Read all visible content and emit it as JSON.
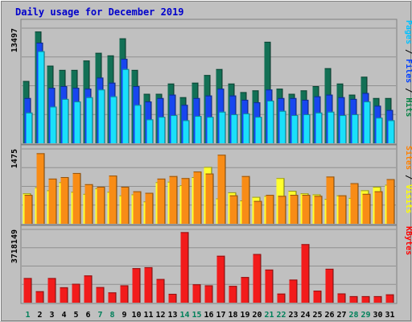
{
  "chart_data": {
    "type": "bar",
    "title": "Daily usage for December 2019",
    "categories": [
      "1",
      "2",
      "3",
      "4",
      "5",
      "6",
      "7",
      "8",
      "9",
      "10",
      "11",
      "12",
      "13",
      "14",
      "15",
      "16",
      "17",
      "18",
      "19",
      "20",
      "21",
      "22",
      "23",
      "24",
      "25",
      "26",
      "27",
      "28",
      "29",
      "30",
      "31"
    ],
    "weekend_days": [
      "1",
      "7",
      "8",
      "14",
      "15",
      "21",
      "22",
      "28",
      "29"
    ],
    "panels": [
      {
        "id": "hits_files_pages",
        "ymax_label": "13497",
        "ymax": 13497,
        "legend": [
          {
            "label": "Pages",
            "color": "#00c0ff"
          },
          {
            "label": "Files",
            "color": "#0040ff"
          },
          {
            "label": "Hits",
            "color": "#008040"
          }
        ],
        "series": [
          {
            "name": "Hits",
            "color": "#127055",
            "values": [
              7300,
              13100,
              9100,
              8600,
              8600,
              9700,
              10600,
              10300,
              12300,
              8600,
              5800,
              5800,
              7000,
              5400,
              7100,
              8000,
              8700,
              7000,
              6000,
              6200,
              11900,
              6400,
              5800,
              6200,
              6700,
              8800,
              7000,
              5700,
              7800,
              5300,
              5300
            ]
          },
          {
            "name": "Files",
            "color": "#1846ef",
            "values": [
              5300,
              11800,
              6500,
              6700,
              6500,
              6400,
              7700,
              7100,
              9900,
              6700,
              4900,
              5300,
              5700,
              4500,
              5300,
              5600,
              6400,
              5600,
              5100,
              4800,
              6300,
              5300,
              5300,
              5100,
              5500,
              5700,
              5400,
              5200,
              5900,
              4400,
              3900
            ]
          },
          {
            "name": "Pages",
            "color": "#1ae0fa",
            "values": [
              3600,
              10800,
              4300,
              5200,
              4900,
              5400,
              6300,
              5500,
              8700,
              4500,
              2800,
              3100,
              3300,
              2700,
              3200,
              3100,
              3700,
              3400,
              3500,
              3100,
              5000,
              3800,
              3300,
              3400,
              3600,
              3700,
              3300,
              3400,
              4900,
              3000,
              2700
            ]
          }
        ]
      },
      {
        "id": "visits_sites",
        "ymax_label": "1475",
        "ymax": 1475,
        "legend": [
          {
            "label": "Sites",
            "color": "#ff8000"
          },
          {
            "label": "Visits",
            "color": "#ffff00"
          }
        ],
        "series": [
          {
            "name": "Visits",
            "color": "#ffff2c",
            "values": [
              600,
              720,
              660,
              820,
              630,
              590,
              700,
              630,
              560,
              580,
              440,
              820,
              830,
              760,
              920,
              1120,
              500,
              620,
              460,
              530,
              550,
              900,
              650,
              600,
              580,
              490,
              560,
              510,
              660,
              730,
              770
            ]
          },
          {
            "name": "Sites",
            "color": "#f88c16",
            "values": [
              570,
              1390,
              890,
              920,
              1000,
              780,
              730,
              950,
              730,
              640,
              610,
              890,
              940,
              900,
              1030,
              990,
              1360,
              560,
              940,
              450,
              570,
              550,
              570,
              570,
              550,
              930,
              560,
              800,
              590,
              640,
              880
            ]
          }
        ]
      },
      {
        "id": "kbytes",
        "ymax_label": "3718149",
        "ymax": 3718149,
        "legend": [
          {
            "label": "KBytes",
            "color": "#ff0000"
          }
        ],
        "series": [
          {
            "name": "KBytes",
            "color": "#f21b1b",
            "values": [
              1250000,
              580000,
              1250000,
              780000,
              960000,
              1380000,
              790000,
              520000,
              880000,
              1750000,
              1800000,
              1200000,
              450000,
              3580000,
              930000,
              880000,
              2380000,
              850000,
              1300000,
              2470000,
              1680000,
              460000,
              1170000,
              2970000,
              610000,
              1720000,
              470000,
              330000,
              330000,
              330000,
              420000
            ]
          }
        ]
      }
    ]
  }
}
